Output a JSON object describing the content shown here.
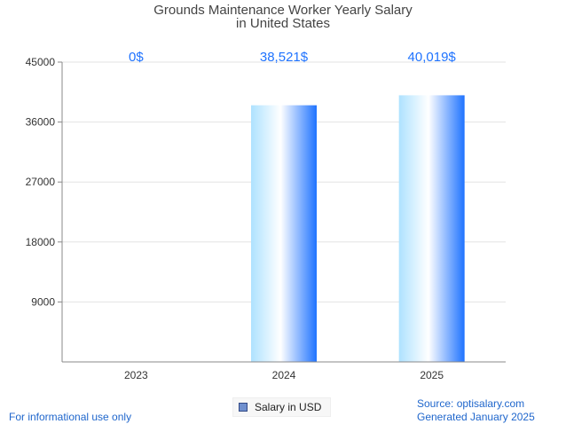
{
  "title_line1": "Grounds Maintenance Worker Yearly Salary",
  "title_line2": "in United States",
  "chart_data": {
    "type": "bar",
    "categories": [
      "2023",
      "2024",
      "2025"
    ],
    "values": [
      0,
      38521,
      40019
    ],
    "value_labels": [
      "0$",
      "38,521$",
      "40,019$"
    ],
    "ylim": [
      0,
      45000
    ],
    "yticks": [
      9000,
      18000,
      27000,
      36000,
      45000
    ],
    "grid": true,
    "series": [
      {
        "name": "Salary in USD",
        "values": [
          0,
          38521,
          40019
        ]
      }
    ],
    "legend_position": "bottom-center",
    "colors": {
      "bar_gradient": [
        "#aee2ff",
        "#ffffff",
        "#1f73ff"
      ],
      "value_label": "#1f73ff",
      "text": "#444444"
    }
  },
  "legend": {
    "label": "Salary in USD"
  },
  "footer": {
    "left": "For informational use only",
    "source": "Source: optisalary.com",
    "generated": "Generated January 2025"
  }
}
